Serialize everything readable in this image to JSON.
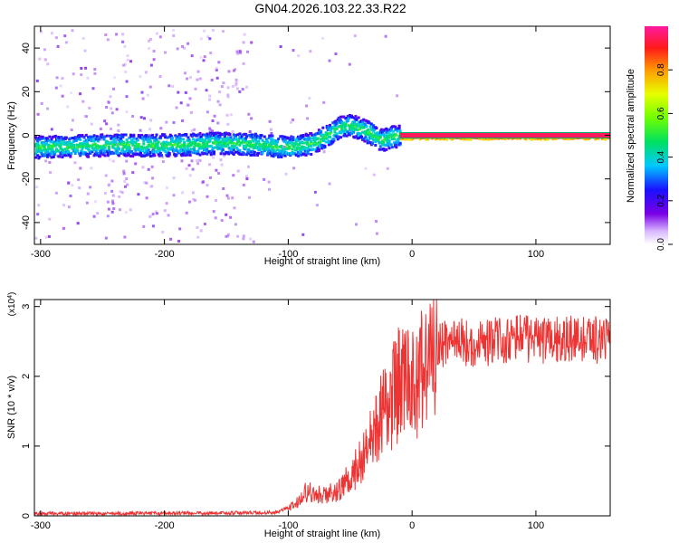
{
  "title": "GN04.2026.103.22.33.R22",
  "chart_data": [
    {
      "type": "heatmap",
      "xlabel": "Height of straight line (km)",
      "ylabel": "Frequency (Hz)",
      "xlim": [
        -305,
        160
      ],
      "ylim": [
        -50,
        50
      ],
      "x_ticks": [
        -300,
        -200,
        -100,
        0,
        100
      ],
      "y_ticks": [
        -40,
        -20,
        0,
        20,
        40
      ],
      "track": [
        {
          "x": -305,
          "y": -5
        },
        {
          "x": -250,
          "y": -4
        },
        {
          "x": -200,
          "y": -4
        },
        {
          "x": -150,
          "y": -3
        },
        {
          "x": -120,
          "y": -4
        },
        {
          "x": -100,
          "y": -5
        },
        {
          "x": -80,
          "y": -3
        },
        {
          "x": -70,
          "y": 0
        },
        {
          "x": -60,
          "y": 4
        },
        {
          "x": -50,
          "y": 5
        },
        {
          "x": -40,
          "y": 3
        },
        {
          "x": -30,
          "y": 0
        },
        {
          "x": -25,
          "y": -2
        },
        {
          "x": -15,
          "y": 0
        },
        {
          "x": -10,
          "y": 0
        },
        {
          "x": 0,
          "y": 0
        },
        {
          "x": 160,
          "y": 0
        }
      ],
      "colorbar": {
        "label": "Normalized spectral amplitude",
        "range": [
          0,
          1
        ],
        "ticks": [
          "0.0",
          "0.2",
          "0.4",
          "0.6",
          "0.8"
        ]
      }
    },
    {
      "type": "line",
      "xlabel": "Height of straight line (km)",
      "ylabel": "SNR (10 * v/v)",
      "scale_label": "(x10",
      "scale_exp": "4",
      "scale_close": ")",
      "xlim": [
        -305,
        160
      ],
      "ylim": [
        0,
        3.1
      ],
      "x_ticks": [
        -300,
        -200,
        -100,
        0,
        100
      ],
      "y_ticks": [
        0,
        1,
        2,
        3
      ],
      "color": "#ee3333",
      "trend": [
        {
          "x": -305,
          "y": 0.03
        },
        {
          "x": -150,
          "y": 0.04
        },
        {
          "x": -110,
          "y": 0.05
        },
        {
          "x": -95,
          "y": 0.15
        },
        {
          "x": -85,
          "y": 0.35
        },
        {
          "x": -75,
          "y": 0.3
        },
        {
          "x": -60,
          "y": 0.35
        },
        {
          "x": -50,
          "y": 0.55
        },
        {
          "x": -40,
          "y": 0.8
        },
        {
          "x": -30,
          "y": 1.2
        },
        {
          "x": -20,
          "y": 1.6
        },
        {
          "x": -10,
          "y": 1.9
        },
        {
          "x": 0,
          "y": 1.85
        },
        {
          "x": 10,
          "y": 2.1
        },
        {
          "x": 20,
          "y": 2.4
        },
        {
          "x": 30,
          "y": 2.55
        },
        {
          "x": 50,
          "y": 2.45
        },
        {
          "x": 80,
          "y": 2.55
        },
        {
          "x": 110,
          "y": 2.5
        },
        {
          "x": 140,
          "y": 2.55
        },
        {
          "x": 160,
          "y": 2.5
        }
      ]
    }
  ]
}
